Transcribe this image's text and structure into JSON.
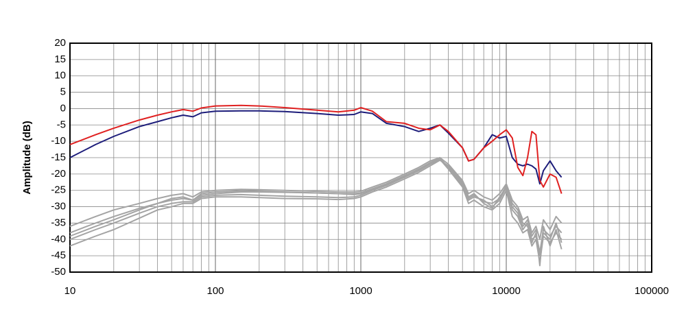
{
  "chart_data": {
    "type": "line",
    "ylabel": "Amplitude (dB)",
    "log_x": true,
    "grid": true,
    "xlim": [
      10,
      100000
    ],
    "xticks": [
      10,
      100,
      1000,
      10000,
      100000
    ],
    "ylim": [
      -50,
      20
    ],
    "yticks": [
      -50,
      -45,
      -40,
      -35,
      -30,
      -25,
      -20,
      -15,
      -10,
      -5,
      0,
      5,
      10,
      15,
      20
    ],
    "x": [
      10,
      15,
      20,
      30,
      40,
      50,
      60,
      70,
      80,
      100,
      150,
      200,
      300,
      500,
      700,
      900,
      1000,
      1200,
      1500,
      2000,
      2500,
      3000,
      3500,
      4000,
      5000,
      5500,
      6000,
      7000,
      8000,
      9000,
      10000,
      11000,
      12000,
      13000,
      14000,
      15000,
      16000,
      17000,
      18000,
      20000,
      22000,
      24000
    ],
    "series": [
      {
        "color": "#a4a4a4",
        "values": [
          -36,
          -33,
          -31,
          -29,
          -27.5,
          -26.5,
          -26,
          -27,
          -25.5,
          -25,
          -24.7,
          -24.8,
          -25,
          -25.3,
          -25.5,
          -25.5,
          -25.3,
          -24,
          -22.5,
          -20,
          -18,
          -16,
          -15,
          -17,
          -22,
          -26,
          -25,
          -27,
          -28,
          -26,
          -23,
          -28,
          -30,
          -34,
          -33,
          -38,
          -36,
          -40,
          -34,
          -37,
          -33,
          -35
        ]
      },
      {
        "color": "#a4a4a4",
        "values": [
          -38,
          -35,
          -33,
          -30.5,
          -29,
          -28,
          -27.5,
          -28,
          -26.5,
          -26,
          -25.5,
          -25.5,
          -25.6,
          -25.8,
          -26,
          -26,
          -25.8,
          -24.5,
          -23,
          -20.5,
          -18.5,
          -16.5,
          -15.2,
          -18,
          -23,
          -28,
          -27,
          -28,
          -30,
          -28,
          -24,
          -31,
          -33,
          -37,
          -35,
          -41,
          -38,
          -44,
          -37,
          -39,
          -36,
          -38
        ]
      },
      {
        "color": "#a4a4a4",
        "values": [
          -40,
          -37,
          -35,
          -32,
          -30,
          -29,
          -28.5,
          -28.5,
          -27,
          -26.5,
          -26.3,
          -26.5,
          -26.8,
          -27,
          -27.2,
          -27,
          -26.5,
          -25,
          -23.5,
          -21,
          -19,
          -17,
          -15.5,
          -18.5,
          -24,
          -29,
          -28,
          -30,
          -31,
          -29,
          -25,
          -33,
          -35,
          -38,
          -37,
          -42,
          -40,
          -47,
          -39,
          -41,
          -38,
          -40
        ]
      },
      {
        "color": "#a4a4a4",
        "values": [
          -42,
          -39,
          -37,
          -33.5,
          -31,
          -30,
          -29,
          -29,
          -27.5,
          -27,
          -27,
          -27.2,
          -27.5,
          -27.6,
          -27.8,
          -27.5,
          -27,
          -25.5,
          -24,
          -21.5,
          -19.5,
          -17.5,
          -15.8,
          -17.5,
          -22.5,
          -27,
          -26,
          -29,
          -30.5,
          -27,
          -24,
          -30,
          -32,
          -36,
          -34,
          -39,
          -37,
          -48,
          -36,
          -42,
          -37,
          -43
        ]
      },
      {
        "color": "#a4a4a4",
        "values": [
          -39,
          -36,
          -34,
          -31,
          -29,
          -27.5,
          -27,
          -28,
          -26,
          -25.5,
          -25.2,
          -25.3,
          -25.5,
          -25.8,
          -26,
          -26.3,
          -26,
          -24.8,
          -23.2,
          -20.8,
          -18.8,
          -16.8,
          -15.3,
          -18,
          -23.5,
          -27.5,
          -26.5,
          -28.5,
          -29,
          -27.5,
          -23.5,
          -29,
          -31,
          -35,
          -36,
          -40,
          -39,
          -45,
          -38,
          -40,
          -35,
          -41
        ]
      },
      {
        "color": "#1c1c7a",
        "values": [
          -15,
          -11,
          -8.5,
          -5.5,
          -4,
          -2.8,
          -2,
          -2.5,
          -1.3,
          -0.8,
          -0.7,
          -0.7,
          -0.9,
          -1.5,
          -2,
          -1.8,
          -1,
          -1.5,
          -4.5,
          -5.5,
          -7,
          -6,
          -5,
          -7.5,
          -12,
          -16,
          -15.5,
          -12,
          -8,
          -9,
          -8.5,
          -15,
          -17,
          -17.5,
          -17,
          -17.5,
          -18.5,
          -23,
          -19,
          -16,
          -19,
          -21
        ]
      },
      {
        "color": "#e02020",
        "values": [
          -11,
          -8,
          -6,
          -3.5,
          -2,
          -1,
          -0.3,
          -0.8,
          0.2,
          0.8,
          1,
          0.8,
          0.3,
          -0.5,
          -1,
          -0.5,
          0.3,
          -0.8,
          -4,
          -4.5,
          -6,
          -6.5,
          -5,
          -7,
          -12,
          -16,
          -15.5,
          -12,
          -10,
          -8,
          -6.5,
          -9,
          -18,
          -20.5,
          -15,
          -7,
          -8,
          -22,
          -24,
          -20,
          -21,
          -26
        ]
      }
    ]
  }
}
